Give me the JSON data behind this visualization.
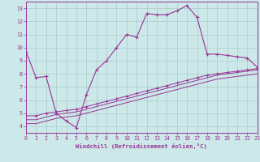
{
  "xlabel": "Windchill (Refroidissement éolien,°C)",
  "bg_color": "#cce8e8",
  "grid_color": "#aacccc",
  "line_color": "#993399",
  "xlim": [
    0,
    23
  ],
  "ylim": [
    3.5,
    13.5
  ],
  "xticks": [
    0,
    1,
    2,
    3,
    4,
    5,
    6,
    7,
    8,
    9,
    10,
    11,
    12,
    13,
    14,
    15,
    16,
    17,
    18,
    19,
    20,
    21,
    22,
    23
  ],
  "yticks": [
    4,
    5,
    6,
    7,
    8,
    9,
    10,
    11,
    12,
    13
  ],
  "series1_x": [
    0,
    1,
    2,
    3,
    4,
    5,
    6,
    7,
    8,
    9,
    10,
    11,
    12,
    13,
    14,
    15,
    16,
    17,
    18,
    19,
    20,
    21,
    22,
    23
  ],
  "series1_y": [
    9.7,
    7.7,
    7.8,
    5.0,
    4.4,
    3.9,
    6.4,
    8.3,
    9.0,
    10.0,
    11.0,
    10.8,
    12.6,
    12.5,
    12.5,
    12.8,
    13.2,
    12.3,
    9.5,
    9.5,
    9.4,
    9.3,
    9.2,
    8.5
  ],
  "series2_x": [
    0,
    1,
    2,
    3,
    4,
    5,
    6,
    7,
    8,
    9,
    10,
    11,
    12,
    13,
    14,
    15,
    16,
    17,
    18,
    19,
    20,
    21,
    22,
    23
  ],
  "series2_y": [
    4.8,
    4.8,
    5.0,
    5.1,
    5.2,
    5.3,
    5.5,
    5.7,
    5.9,
    6.1,
    6.3,
    6.5,
    6.7,
    6.9,
    7.1,
    7.3,
    7.5,
    7.7,
    7.9,
    8.0,
    8.1,
    8.2,
    8.3,
    8.4
  ],
  "series3_x": [
    0,
    1,
    2,
    3,
    4,
    5,
    6,
    7,
    8,
    9,
    10,
    11,
    12,
    13,
    14,
    15,
    16,
    17,
    18,
    19,
    20,
    21,
    22,
    23
  ],
  "series3_y": [
    4.5,
    4.5,
    4.7,
    4.9,
    5.0,
    5.1,
    5.3,
    5.5,
    5.7,
    5.9,
    6.1,
    6.3,
    6.5,
    6.7,
    6.9,
    7.1,
    7.3,
    7.5,
    7.7,
    7.9,
    8.0,
    8.1,
    8.2,
    8.3
  ],
  "series4_x": [
    0,
    1,
    2,
    3,
    4,
    5,
    6,
    7,
    8,
    9,
    10,
    11,
    12,
    13,
    14,
    15,
    16,
    17,
    18,
    19,
    20,
    21,
    22,
    23
  ],
  "series4_y": [
    4.2,
    4.2,
    4.4,
    4.6,
    4.7,
    4.8,
    5.0,
    5.2,
    5.4,
    5.6,
    5.8,
    6.0,
    6.2,
    6.4,
    6.6,
    6.8,
    7.0,
    7.2,
    7.4,
    7.6,
    7.7,
    7.8,
    7.9,
    8.0
  ],
  "label_fontsize": 4.8,
  "xlabel_fontsize": 5.2
}
